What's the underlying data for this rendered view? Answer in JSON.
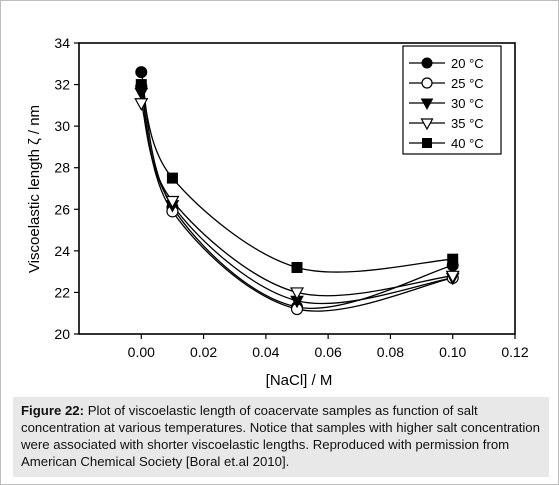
{
  "chart_data": {
    "type": "scatter",
    "xlabel": "[NaCl]  / M",
    "ylabel": "Viscoelastic length ζ / nm",
    "xlim": [
      -0.02,
      0.12
    ],
    "ylim": [
      20,
      34
    ],
    "xticks": [
      "0.00",
      "0.02",
      "0.04",
      "0.06",
      "0.08",
      "0.10",
      "0.12"
    ],
    "yticks": [
      "20",
      "22",
      "24",
      "26",
      "28",
      "30",
      "32",
      "34"
    ],
    "grid": false,
    "legend_position": "top-right",
    "x": [
      0.0,
      0.01,
      0.05,
      0.1
    ],
    "series": [
      {
        "name": "20 °C",
        "marker": "filled-circle",
        "values": [
          32.6,
          26.1,
          21.3,
          23.3
        ]
      },
      {
        "name": "25 °C",
        "marker": "open-circle",
        "values": [
          31.9,
          25.9,
          21.2,
          22.7
        ]
      },
      {
        "name": "30 °C",
        "marker": "filled-triangle-down",
        "values": [
          31.6,
          26.2,
          21.6,
          22.7
        ]
      },
      {
        "name": "35 °C",
        "marker": "open-triangle-down",
        "values": [
          31.1,
          26.4,
          22.0,
          22.8
        ]
      },
      {
        "name": "40 °C",
        "marker": "filled-square",
        "values": [
          32.0,
          27.5,
          23.2,
          23.6
        ]
      }
    ]
  },
  "caption": {
    "label": "Figure 22:",
    "text": " Plot of viscoelastic length of coacervate samples as function of salt concentration at various temperatures.  Notice that samples with higher salt concentration were associated with shorter viscoelastic lengths. Reproduced with permission from American Chemical Society [Boral et.al 2010]."
  }
}
